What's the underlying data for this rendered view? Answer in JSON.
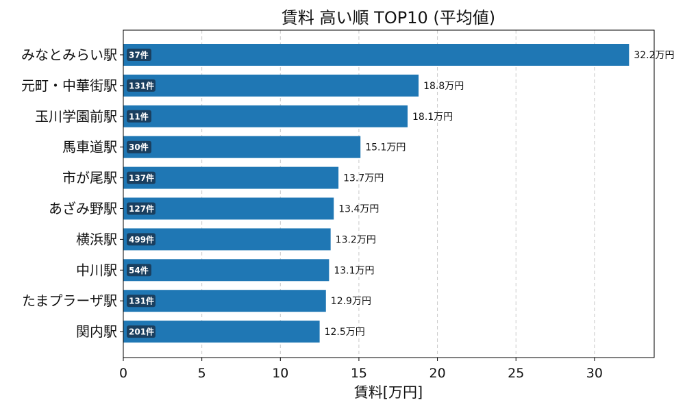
{
  "chart_data": {
    "type": "bar",
    "orientation": "horizontal",
    "title": "賃料 高い順 TOP10 (平均値)",
    "xlabel": "賃料[万円]",
    "ylabel": "",
    "xlim": [
      0,
      33.8
    ],
    "xticks": [
      "0",
      "5",
      "10",
      "15",
      "20",
      "25",
      "30"
    ],
    "grid": "x-dashed",
    "bar_color": "#1f77b4",
    "badge_color": "#1a3f5f",
    "categories": [
      "みなとみらい駅",
      "元町・中華街駅",
      "玉川学園前駅",
      "馬車道駅",
      "市が尾駅",
      "あざみ野駅",
      "横浜駅",
      "中川駅",
      "たまプラーザ駅",
      "関内駅"
    ],
    "values": [
      32.2,
      18.8,
      18.1,
      15.1,
      13.7,
      13.4,
      13.2,
      13.1,
      12.9,
      12.5
    ],
    "value_labels": [
      "32.2万円",
      "18.8万円",
      "18.1万円",
      "15.1万円",
      "13.7万円",
      "13.4万円",
      "13.2万円",
      "13.1万円",
      "12.9万円",
      "12.5万円"
    ],
    "count_labels": [
      "37件",
      "131件",
      "11件",
      "30件",
      "137件",
      "127件",
      "499件",
      "54件",
      "131件",
      "201件"
    ]
  }
}
